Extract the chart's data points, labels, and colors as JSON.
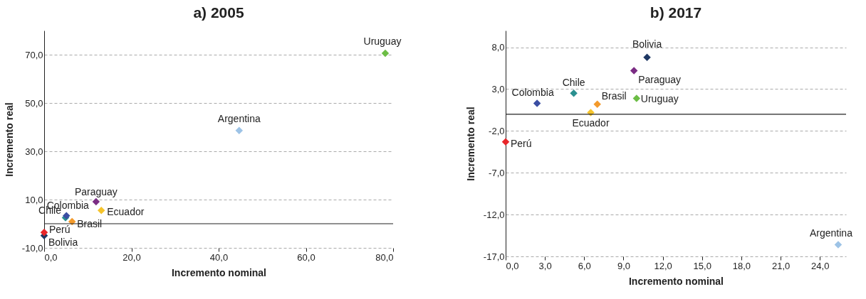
{
  "chart_data": [
    {
      "type": "scatter",
      "title": "a) 2005",
      "xlabel": "Incremento nominal",
      "ylabel": "Incremento real",
      "marker": "diamond",
      "grid": "y",
      "legend": false,
      "xlim": [
        0,
        80
      ],
      "xticks": [
        {
          "value": 0,
          "label": "0,0"
        },
        {
          "value": 20,
          "label": "20,0"
        },
        {
          "value": 40,
          "label": "40,0"
        },
        {
          "value": 60,
          "label": "60,0"
        },
        {
          "value": 80,
          "label": "80,0"
        }
      ],
      "ylim": [
        -10,
        80
      ],
      "yticks": [
        {
          "value": -10,
          "label": "-10,0"
        },
        {
          "value": 10,
          "label": "10,0"
        },
        {
          "value": 30,
          "label": "30,0"
        },
        {
          "value": 50,
          "label": "50,0"
        },
        {
          "value": 70,
          "label": "70,0"
        }
      ],
      "ref_lines": [
        {
          "axis": "y",
          "value": 0,
          "color": "#222222"
        }
      ],
      "series": [
        {
          "name": "Argentina",
          "color": "#9dc3e6",
          "x": [
            44.7
          ],
          "values": [
            38.6
          ]
        },
        {
          "name": "Bolivia",
          "color": "#1f3864",
          "x": [
            0
          ],
          "values": [
            -4.9
          ]
        },
        {
          "name": "Brasil",
          "color": "#f39a2b",
          "x": [
            6.4
          ],
          "values": [
            0.9
          ]
        },
        {
          "name": "Chile",
          "color": "#2a9090",
          "x": [
            4.9
          ],
          "values": [
            2.5
          ]
        },
        {
          "name": "Colombia",
          "color": "#3b4ea3",
          "x": [
            5.1
          ],
          "values": [
            3.3
          ]
        },
        {
          "name": "Ecuador",
          "color": "#f5c42c",
          "x": [
            13.1
          ],
          "values": [
            5.5
          ]
        },
        {
          "name": "Paraguay",
          "color": "#7b2c84",
          "x": [
            11.9
          ],
          "values": [
            9.1
          ]
        },
        {
          "name": "Perú",
          "color": "#e8262a",
          "x": [
            0
          ],
          "values": [
            -3.6
          ]
        },
        {
          "name": "Uruguay",
          "color": "#6cbd45",
          "x": [
            78.2
          ],
          "values": [
            70.6
          ]
        }
      ]
    },
    {
      "type": "scatter",
      "title": "b) 2017",
      "xlabel": "Incremento nominal",
      "ylabel": "Incremento real",
      "marker": "diamond",
      "grid": "y",
      "legend": false,
      "xlim": [
        0,
        26
      ],
      "xticks": [
        {
          "value": 0,
          "label": "0,0"
        },
        {
          "value": 3,
          "label": "3,0"
        },
        {
          "value": 6,
          "label": "6,0"
        },
        {
          "value": 9,
          "label": "9,0"
        },
        {
          "value": 12,
          "label": "12,0"
        },
        {
          "value": 15,
          "label": "15,0"
        },
        {
          "value": 18,
          "label": "18,0"
        },
        {
          "value": 21,
          "label": "21,0"
        },
        {
          "value": 24,
          "label": "24,0"
        }
      ],
      "ylim": [
        -17,
        10
      ],
      "yticks": [
        {
          "value": -17,
          "label": "-17,0"
        },
        {
          "value": -12,
          "label": "-12,0"
        },
        {
          "value": -7,
          "label": "-7,0"
        },
        {
          "value": -2,
          "label": "-2,0"
        },
        {
          "value": 3,
          "label": "3,0"
        },
        {
          "value": 8,
          "label": "8,0"
        }
      ],
      "ref_lines": [
        {
          "axis": "y",
          "value": 0,
          "color": "#222222"
        }
      ],
      "series": [
        {
          "name": "Argentina",
          "color": "#9dc3e6",
          "x": [
            25.4
          ],
          "values": [
            -15.6
          ]
        },
        {
          "name": "Bolivia",
          "color": "#1f3864",
          "x": [
            10.8
          ],
          "values": [
            6.8
          ]
        },
        {
          "name": "Brasil",
          "color": "#f39a2b",
          "x": [
            7.0
          ],
          "values": [
            1.2
          ]
        },
        {
          "name": "Chile",
          "color": "#2a9090",
          "x": [
            5.2
          ],
          "values": [
            2.5
          ]
        },
        {
          "name": "Colombia",
          "color": "#3b4ea3",
          "x": [
            2.4
          ],
          "values": [
            1.3
          ]
        },
        {
          "name": "Ecuador",
          "color": "#f5c42c",
          "x": [
            6.5
          ],
          "values": [
            0.2
          ]
        },
        {
          "name": "Paraguay",
          "color": "#7b2c84",
          "x": [
            9.8
          ],
          "values": [
            5.2
          ]
        },
        {
          "name": "Perú",
          "color": "#e8262a",
          "x": [
            0
          ],
          "values": [
            -3.3
          ]
        },
        {
          "name": "Uruguay",
          "color": "#6cbd45",
          "x": [
            10.0
          ],
          "values": [
            1.9
          ]
        }
      ]
    }
  ]
}
